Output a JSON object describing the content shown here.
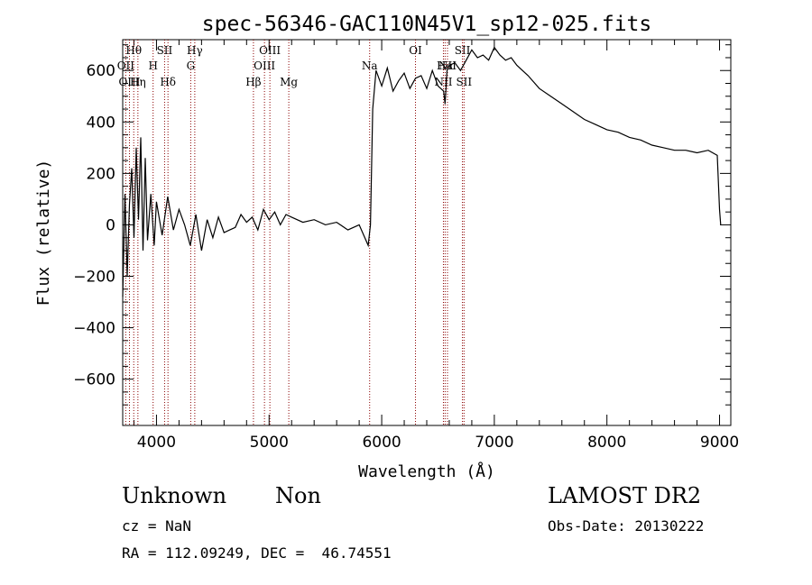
{
  "chart_data": {
    "type": "line",
    "title": "spec-56346-GAC110N45V1_sp12-025.fits",
    "xlabel": "Wavelength (Å)",
    "ylabel": "Flux (relative)",
    "xlim": [
      3700,
      9100
    ],
    "ylim": [
      -780,
      720
    ],
    "x_ticks": [
      4000,
      5000,
      6000,
      7000,
      8000,
      9000
    ],
    "x_tick_labels": [
      "4000",
      "5000",
      "6000",
      "7000",
      "8000",
      "9000"
    ],
    "y_ticks": [
      -600,
      -400,
      -200,
      0,
      200,
      400,
      600
    ],
    "y_tick_labels": [
      "−600",
      "−400",
      "−200",
      "0",
      "200",
      "400",
      "600"
    ],
    "grid": false,
    "line_color": "#000000",
    "marker_color": "#8b0000",
    "series": [
      {
        "x": [
          3700,
          3720,
          3740,
          3760,
          3780,
          3800,
          3820,
          3840,
          3860,
          3880,
          3900,
          3920,
          3950,
          3980,
          4000,
          4050,
          4100,
          4150,
          4200,
          4250,
          4300,
          4350,
          4400,
          4450,
          4500,
          4550,
          4600,
          4650,
          4700,
          4750,
          4800,
          4850,
          4900,
          4950,
          5000,
          5050,
          5100,
          5150,
          5200,
          5300,
          5400,
          5500,
          5600,
          5700,
          5800,
          5880,
          5900,
          5920,
          5950,
          6000,
          6050,
          6100,
          6150,
          6200,
          6250,
          6300,
          6350,
          6400,
          6450,
          6500,
          6550,
          6563,
          6580,
          6600,
          6650,
          6700,
          6750,
          6800,
          6850,
          6900,
          6950,
          7000,
          7050,
          7100,
          7150,
          7200,
          7300,
          7400,
          7500,
          7600,
          7700,
          7800,
          7900,
          8000,
          8100,
          8200,
          8300,
          8400,
          8500,
          8600,
          8700,
          8800,
          8900,
          8980,
          9000,
          9010
        ],
        "y": [
          -280,
          120,
          -200,
          80,
          220,
          -50,
          300,
          20,
          340,
          -100,
          260,
          -60,
          120,
          -80,
          90,
          -40,
          110,
          -20,
          60,
          0,
          -80,
          40,
          -100,
          20,
          -50,
          30,
          -30,
          -20,
          -10,
          40,
          10,
          30,
          -20,
          60,
          20,
          50,
          0,
          40,
          30,
          10,
          20,
          0,
          10,
          -20,
          0,
          -80,
          0,
          450,
          600,
          540,
          610,
          520,
          560,
          590,
          530,
          570,
          580,
          530,
          600,
          540,
          520,
          470,
          600,
          620,
          630,
          600,
          640,
          680,
          650,
          660,
          640,
          690,
          660,
          640,
          650,
          620,
          580,
          530,
          500,
          470,
          440,
          410,
          390,
          370,
          360,
          340,
          330,
          310,
          300,
          290,
          290,
          280,
          290,
          270,
          60,
          0
        ]
      }
    ],
    "spectral_lines": [
      {
        "x": 3727,
        "label": "OII",
        "row": 1
      },
      {
        "x": 3760,
        "label": "OIII",
        "row": 2
      },
      {
        "x": 3798,
        "label": "Hθ",
        "row": 0
      },
      {
        "x": 3835,
        "label": "Hη",
        "row": 2
      },
      {
        "x": 3970,
        "label": "H",
        "row": 1
      },
      {
        "x": 4072,
        "label": "SII",
        "row": 0
      },
      {
        "x": 4102,
        "label": "Hδ",
        "row": 2
      },
      {
        "x": 4304,
        "label": "G",
        "row": 1
      },
      {
        "x": 4340,
        "label": "Hγ",
        "row": 0
      },
      {
        "x": 4861,
        "label": "Hβ",
        "row": 2
      },
      {
        "x": 4959,
        "label": "OIII",
        "row": 1
      },
      {
        "x": 5007,
        "label": "OIII",
        "row": 0
      },
      {
        "x": 5175,
        "label": "Mg",
        "row": 2
      },
      {
        "x": 5893,
        "label": "Na",
        "row": 1
      },
      {
        "x": 6300,
        "label": "OI",
        "row": 0
      },
      {
        "x": 6548,
        "label": "NII",
        "row": 2
      },
      {
        "x": 6563,
        "label": "Hα",
        "row": 1
      },
      {
        "x": 6584,
        "label": "NII",
        "row": 1
      },
      {
        "x": 6717,
        "label": "SII",
        "row": 0
      },
      {
        "x": 6731,
        "label": "SII",
        "row": 2
      }
    ]
  },
  "info": {
    "class_text": "Unknown",
    "subclass_text": "Non",
    "survey": "LAMOST DR2",
    "redshift": "cz = NaN",
    "obs_date": "Obs-Date: 20130222",
    "coords": "RA = 112.09249, DEC =  46.74551"
  }
}
